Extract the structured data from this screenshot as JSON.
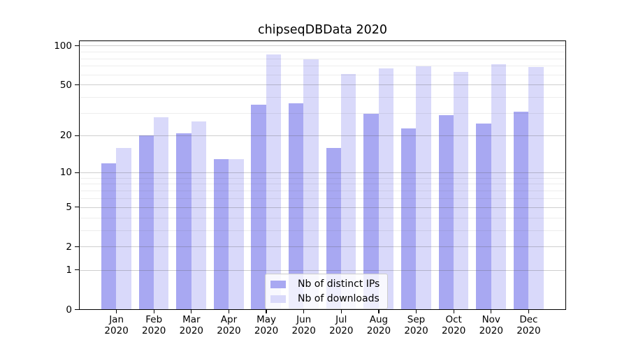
{
  "figure": {
    "background_color": "#ffffff",
    "text_color": "#000000"
  },
  "chart_data": {
    "type": "bar",
    "title": "chipseqDBData 2020",
    "categories": [
      "Jan",
      "Feb",
      "Mar",
      "Apr",
      "May",
      "Jun",
      "Jul",
      "Aug",
      "Sep",
      "Oct",
      "Nov",
      "Dec"
    ],
    "category_year": "2020",
    "series": [
      {
        "name": "Nb of distinct IPs",
        "color": "#a8a8f2",
        "values": [
          12,
          20,
          21,
          13,
          35,
          36,
          16,
          30,
          23,
          29,
          25,
          31
        ]
      },
      {
        "name": "Nb of downloads",
        "color": "#d9d9fa",
        "values": [
          16,
          28,
          26,
          13,
          86,
          79,
          61,
          67,
          70,
          63,
          72,
          69
        ]
      }
    ],
    "xlabel": "",
    "ylabel": "",
    "yscale": "log1p",
    "y_major_ticks": [
      0,
      1,
      2,
      5,
      10,
      20,
      50,
      100
    ],
    "y_minor_gridlines": [
      3,
      4,
      6,
      7,
      8,
      9,
      30,
      40,
      60,
      70,
      80,
      90
    ],
    "ylim": [
      0,
      107
    ],
    "grid": true,
    "legend_position": "lower center inside plot"
  }
}
